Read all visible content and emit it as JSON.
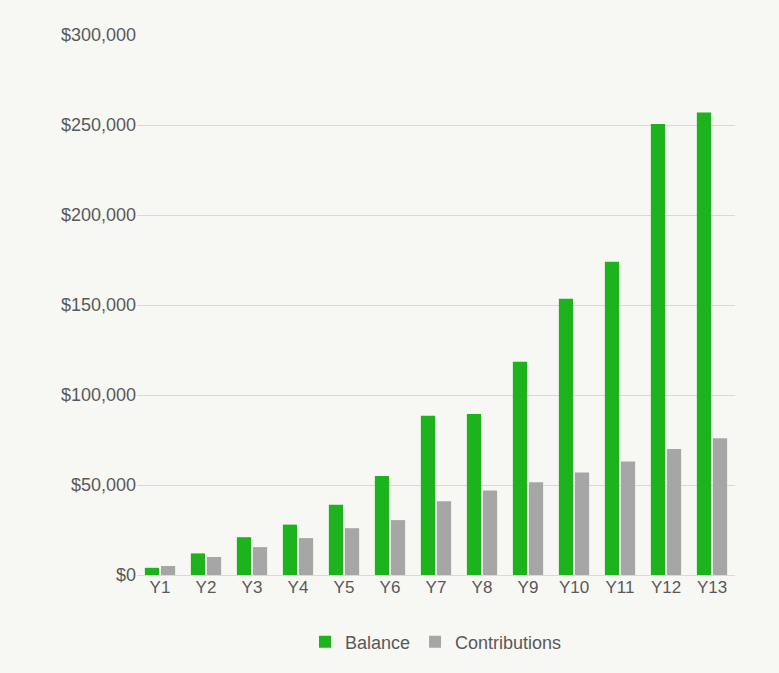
{
  "chart_data": {
    "type": "bar",
    "categories": [
      "Y1",
      "Y2",
      "Y3",
      "Y4",
      "Y5",
      "Y6",
      "Y7",
      "Y8",
      "Y9",
      "Y10",
      "Y11",
      "Y12",
      "Y13"
    ],
    "series": [
      {
        "name": "Balance",
        "color": "#1db31d",
        "values": [
          4000,
          12000,
          21000,
          28000,
          39000,
          55000,
          88500,
          89500,
          118500,
          153500,
          174000,
          250500,
          257000
        ]
      },
      {
        "name": "Contributions",
        "color": "#a6a6a6",
        "values": [
          5000,
          10000,
          15500,
          20500,
          26000,
          30500,
          41000,
          47000,
          51500,
          57000,
          63000,
          70000,
          76000
        ]
      }
    ],
    "ylim": [
      0,
      300000
    ],
    "yticks": [
      {
        "value": 0,
        "label": "$0"
      },
      {
        "value": 50000,
        "label": "$50,000"
      },
      {
        "value": 100000,
        "label": "$100,000"
      },
      {
        "value": 150000,
        "label": "$150,000"
      },
      {
        "value": 200000,
        "label": "$200,000"
      },
      {
        "value": 250000,
        "label": "$250,000"
      },
      {
        "value": 300000,
        "label": "$300,000"
      }
    ],
    "grid": true,
    "legend": "bottom"
  }
}
